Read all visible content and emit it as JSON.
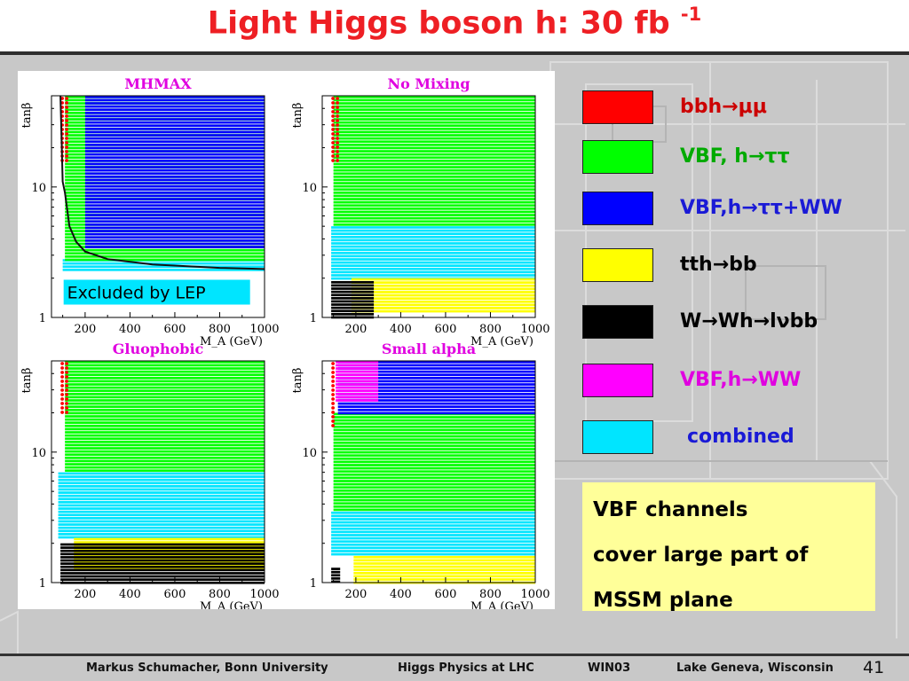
{
  "slide": {
    "title": "Light Higgs boson h: 30 fb",
    "title_sup": "-1",
    "note_lines": [
      "VBF channels",
      "cover large part of",
      "MSSM plane"
    ],
    "footer": {
      "author": "Markus Schumacher,  Bonn University",
      "talk": "Higgs Physics at LHC",
      "conf": "WIN03",
      "place": "Lake Geneva, Wisconsin",
      "page": "41"
    }
  },
  "legend": [
    {
      "swatch": "#ff0000",
      "text": "bbh→μμ",
      "text_color": "#cc0000"
    },
    {
      "swatch": "#00ff00",
      "text": "VBF, h→ττ",
      "text_color": "#00aa00"
    },
    {
      "swatch": "#0000ff",
      "text": "VBF,h→ττ+WW",
      "text_color": "#1a1ad6"
    },
    {
      "swatch": "#ffff00",
      "text": "tth→bb",
      "text_color": "#000000"
    },
    {
      "swatch": "#000000",
      "text": "W→Wh→lνbb",
      "text_color": "#000000"
    },
    {
      "swatch": "#ff00ff",
      "text": "VBF,h→WW",
      "text_color": "#e000e0"
    },
    {
      "swatch": "#00e5ff",
      "text": "combined",
      "text_color": "#1a1ad6"
    }
  ],
  "colors": {
    "bbh_mumu": "#ff0000",
    "vbf_tautau": "#00ff00",
    "vbf_tautau_ww": "#0000ff",
    "tth_bb": "#ffff00",
    "wh_lnubb": "#000000",
    "vbf_ww": "#ff00ff",
    "combined": "#00e5ff",
    "panel_title": "#e000e0",
    "lep_curve": "#111111"
  },
  "chart_data": [
    {
      "type": "heatmap",
      "title": "MHMAX",
      "xlabel": "M_A (GeV)",
      "ylabel": "tanβ",
      "xlim": [
        50,
        1000
      ],
      "ylim": [
        1,
        50
      ],
      "y_scale": "log",
      "xticks": [
        200,
        400,
        600,
        800,
        1000
      ],
      "yticks": [
        1,
        10
      ],
      "annotation": "Excluded by LEP",
      "lep_curve": {
        "x": [
          90,
          100,
          110,
          130,
          160,
          200,
          300,
          500,
          800,
          1000
        ],
        "y": [
          50,
          11,
          9,
          5,
          3.8,
          3.2,
          2.8,
          2.55,
          2.4,
          2.35
        ]
      },
      "regions": [
        {
          "name": "combined",
          "x_min": 100,
          "x_max": 1000,
          "y_min": 2.3,
          "y_max": 2.8
        },
        {
          "name": "vbf_tautau",
          "x_min": 110,
          "x_max": 1000,
          "y_min": 2.8,
          "y_max": 50
        },
        {
          "name": "vbf_tautau_ww",
          "x_min": 200,
          "x_max": 1000,
          "y_min": 3.5,
          "y_max": 50
        },
        {
          "name": "bbh_mumu",
          "x_min": 90,
          "x_max": 120,
          "y_min": 15,
          "y_max": 50
        }
      ]
    },
    {
      "type": "heatmap",
      "title": "No Mixing",
      "xlabel": "M_A (GeV)",
      "ylabel": "tanβ",
      "xlim": [
        50,
        1000
      ],
      "ylim": [
        1,
        50
      ],
      "y_scale": "log",
      "xticks": [
        200,
        400,
        600,
        800,
        1000
      ],
      "yticks": [
        1,
        10
      ],
      "regions": [
        {
          "name": "vbf_tautau",
          "x_min": 100,
          "x_max": 1000,
          "y_min": 5,
          "y_max": 50
        },
        {
          "name": "combined",
          "x_min": 90,
          "x_max": 1000,
          "y_min": 2.0,
          "y_max": 5
        },
        {
          "name": "tth_bb",
          "x_min": 180,
          "x_max": 1000,
          "y_min": 1.1,
          "y_max": 2.0
        },
        {
          "name": "wh_lnubb",
          "x_min": 90,
          "x_max": 280,
          "y_min": 1.0,
          "y_max": 1.9
        },
        {
          "name": "bbh_mumu",
          "x_min": 90,
          "x_max": 120,
          "y_min": 15,
          "y_max": 50
        }
      ]
    },
    {
      "type": "heatmap",
      "title": "Gluophobic",
      "xlabel": "M_A (GeV)",
      "ylabel": "tanβ",
      "xlim": [
        50,
        1000
      ],
      "ylim": [
        1,
        50
      ],
      "y_scale": "log",
      "xticks": [
        200,
        400,
        600,
        800,
        1000
      ],
      "yticks": [
        1,
        10
      ],
      "regions": [
        {
          "name": "vbf_tautau",
          "x_min": 110,
          "x_max": 1000,
          "y_min": 7,
          "y_max": 50
        },
        {
          "name": "combined",
          "x_min": 80,
          "x_max": 1000,
          "y_min": 2.2,
          "y_max": 7
        },
        {
          "name": "tth_bb",
          "x_min": 150,
          "x_max": 1000,
          "y_min": 1.3,
          "y_max": 2.2
        },
        {
          "name": "wh_lnubb",
          "x_min": 90,
          "x_max": 1000,
          "y_min": 1.0,
          "y_max": 2.0
        },
        {
          "name": "bbh_mumu",
          "x_min": 90,
          "x_max": 120,
          "y_min": 20,
          "y_max": 50
        }
      ]
    },
    {
      "type": "heatmap",
      "title": "Small alpha",
      "xlabel": "M_A (GeV)",
      "ylabel": "tanβ",
      "xlim": [
        50,
        1000
      ],
      "ylim": [
        1,
        50
      ],
      "y_scale": "log",
      "xticks": [
        200,
        400,
        600,
        800,
        1000
      ],
      "yticks": [
        1,
        10
      ],
      "regions": [
        {
          "name": "vbf_tautau_ww",
          "x_min": 120,
          "x_max": 1000,
          "y_min": 20,
          "y_max": 50
        },
        {
          "name": "vbf_ww",
          "x_min": 110,
          "x_max": 300,
          "y_min": 25,
          "y_max": 50
        },
        {
          "name": "vbf_tautau",
          "x_min": 100,
          "x_max": 1000,
          "y_min": 3.5,
          "y_max": 20
        },
        {
          "name": "combined",
          "x_min": 90,
          "x_max": 1000,
          "y_min": 1.6,
          "y_max": 3.5
        },
        {
          "name": "tth_bb",
          "x_min": 190,
          "x_max": 1000,
          "y_min": 1.0,
          "y_max": 1.6
        },
        {
          "name": "wh_lnubb",
          "x_min": 90,
          "x_max": 130,
          "y_min": 1.0,
          "y_max": 1.3
        },
        {
          "name": "bbh_mumu",
          "x_min": 90,
          "x_max": 115,
          "y_min": 15,
          "y_max": 50
        }
      ]
    }
  ]
}
